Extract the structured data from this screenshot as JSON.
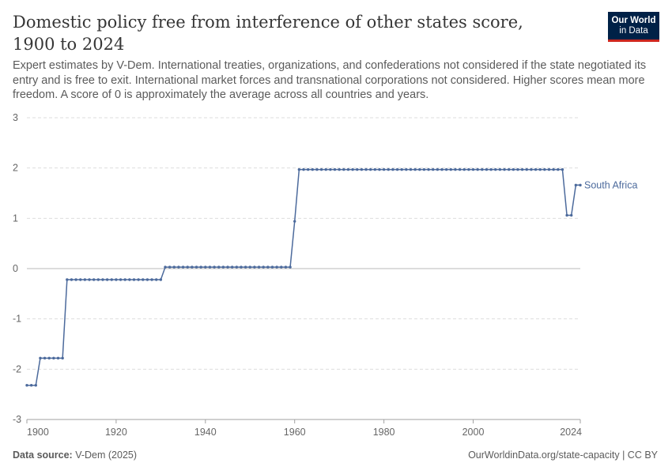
{
  "header": {
    "title": "Domestic policy free from interference of other states score, 1900 to 2024",
    "subtitle": "Expert estimates by V-Dem. International treaties, organizations, and confederations not considered if the state negotiated its entry and is free to exit. International market forces and transnational corporations not considered. Higher scores mean more freedom. A score of 0 is approximately the average across all countries and years."
  },
  "logo": {
    "line1": "Our World",
    "line2": "in Data"
  },
  "footer": {
    "source_label": "Data source:",
    "source_value": "V-Dem (2025)",
    "link": "OurWorldinData.org/state-capacity | CC BY"
  },
  "colors": {
    "series": "#4c6a9c",
    "grid": "#dddddd",
    "axis": "#a1a1a1",
    "zero": "#b8b8b8",
    "tick_text": "#666666"
  },
  "chart_data": {
    "type": "line",
    "title": "Domestic policy free from interference of other states score, 1900 to 2024",
    "xlabel": "",
    "ylabel": "",
    "xlim": [
      1900,
      2024
    ],
    "ylim": [
      -3,
      3
    ],
    "x_ticks": [
      1900,
      1920,
      1940,
      1960,
      1980,
      2000,
      2024
    ],
    "y_ticks": [
      3,
      2,
      1,
      0,
      -1,
      -2,
      -3
    ],
    "grid": true,
    "legend": "line end label",
    "series": [
      {
        "name": "South Africa",
        "color": "#4c6a9c",
        "segments": [
          {
            "from": 1900,
            "to": 1902,
            "value": -2.32
          },
          {
            "from": 1903,
            "to": 1908,
            "value": -1.78
          },
          {
            "from": 1909,
            "to": 1930,
            "value": -0.22
          },
          {
            "from": 1931,
            "to": 1959,
            "value": 0.03
          },
          {
            "from": 1960,
            "to": 1960,
            "value": 0.94
          },
          {
            "from": 1961,
            "to": 2020,
            "value": 1.97
          },
          {
            "from": 2021,
            "to": 2022,
            "value": 1.06
          },
          {
            "from": 2023,
            "to": 2024,
            "value": 1.66
          }
        ]
      }
    ]
  }
}
